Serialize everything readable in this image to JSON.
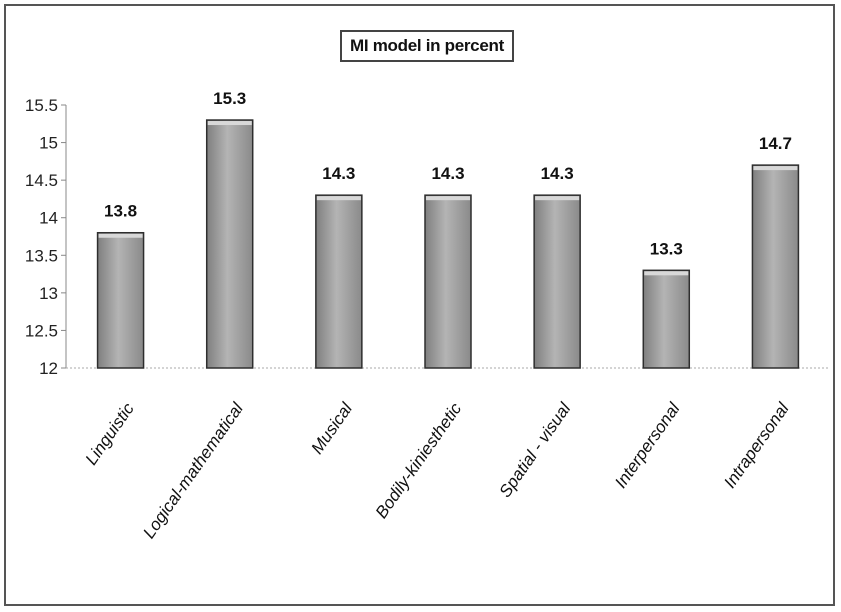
{
  "chart_data": {
    "type": "bar",
    "title": "MI model in percent",
    "categories": [
      "Linguistic",
      "Logical-mathematical",
      "Musical",
      "Bodily-kiniesthetic",
      "Spatial - visual",
      "Interpersonal",
      "Intrapersonal"
    ],
    "values": [
      13.8,
      15.3,
      14.3,
      14.3,
      14.3,
      13.3,
      14.7
    ],
    "data_labels": [
      "13.8",
      "15.3",
      "14.3",
      "14.3",
      "14.3",
      "13.3",
      "14.7"
    ],
    "y_ticks": [
      "12",
      "12.5",
      "13",
      "13.5",
      "14",
      "14.5",
      "15",
      "15.5"
    ],
    "ylim": [
      12,
      15.5
    ],
    "xlabel": "",
    "ylabel": "",
    "grid": false,
    "legend": "none",
    "colors": {
      "bar_fill": "#a9a9a9",
      "bar_edge": "#2e2e2e",
      "bar_top": "#d8d8d8"
    }
  }
}
